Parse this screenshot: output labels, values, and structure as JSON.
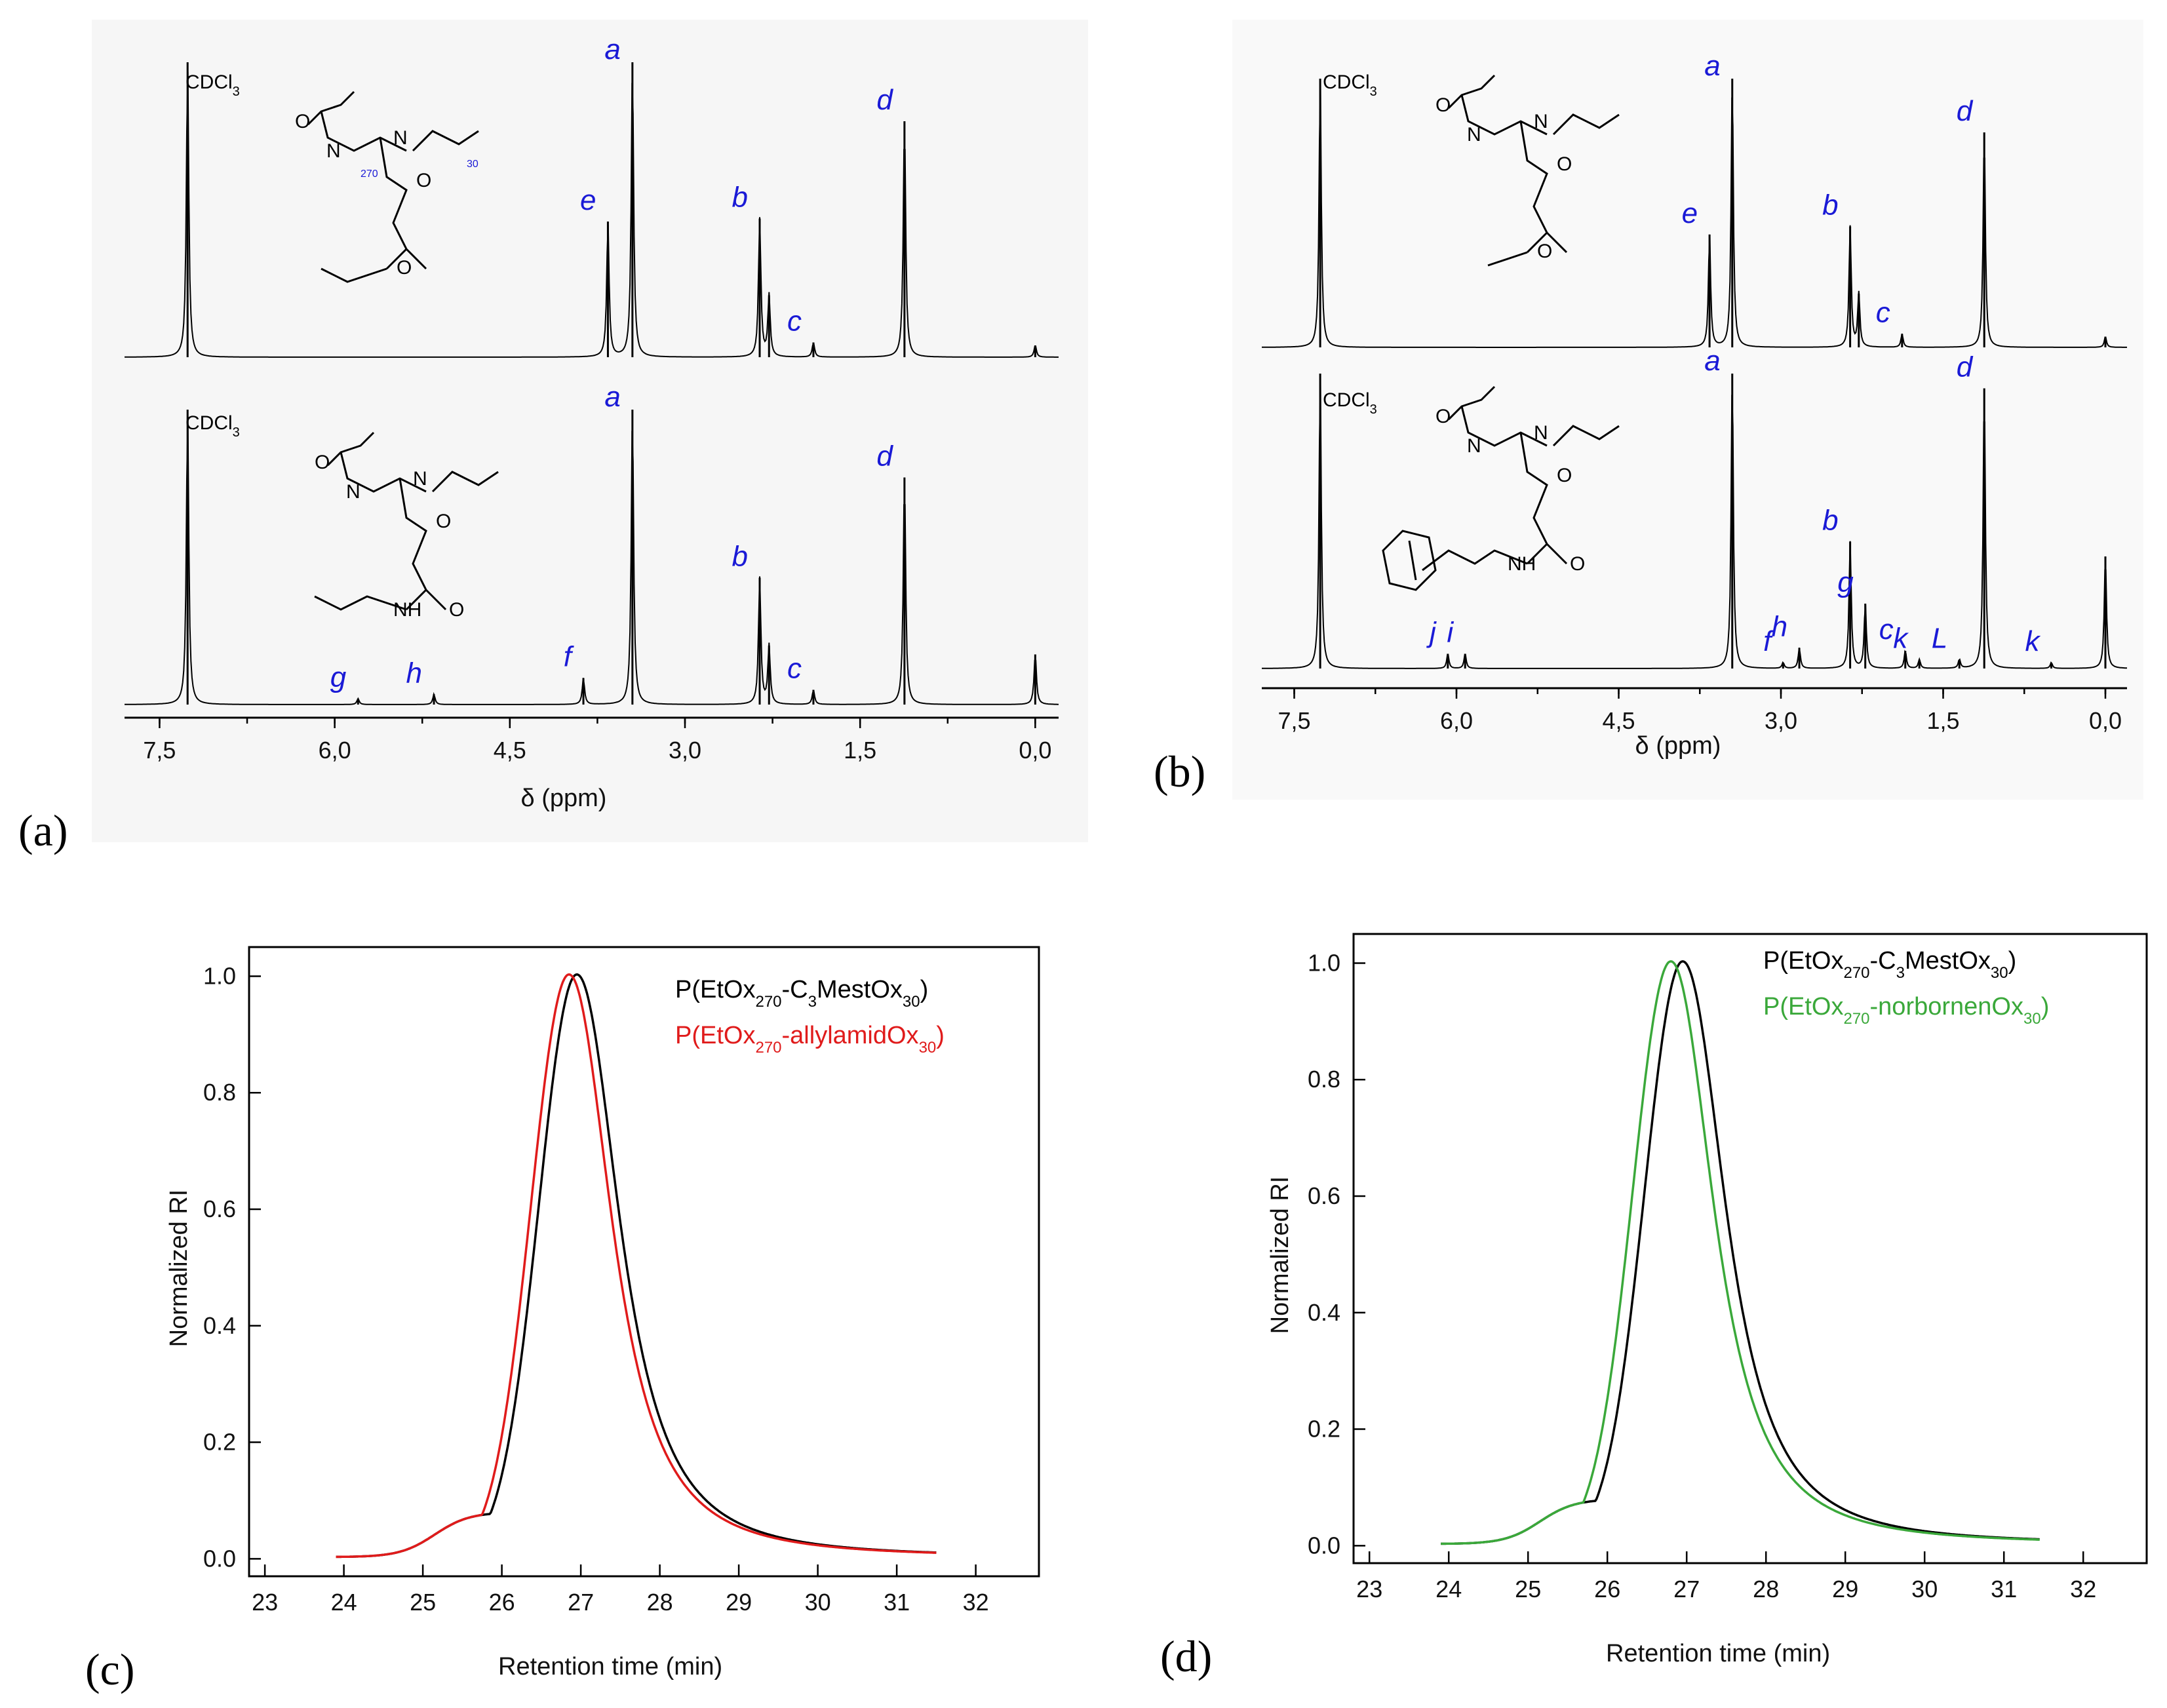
{
  "panels": {
    "a": "(a)",
    "b": "(b)",
    "c": "(c)",
    "d": "(d)"
  },
  "chart_data": [
    {
      "id": "a",
      "type": "line",
      "xlabel": "δ (ppm)",
      "xlim": [
        7.8,
        -0.2
      ],
      "xticks": [
        "7,5",
        "6,0",
        "4,5",
        "3,0",
        "1,5",
        "0,0"
      ],
      "xtick_values": [
        7.5,
        6.0,
        4.5,
        3.0,
        1.5,
        0.0
      ],
      "solvent_label": "CDCl3",
      "spectra": [
        {
          "name": "top",
          "peaks": [
            {
              "ppm": 7.26,
              "h": 1.0,
              "label": ""
            },
            {
              "ppm": 3.66,
              "h": 0.46,
              "label": "e"
            },
            {
              "ppm": 3.45,
              "h": 1.0,
              "label": "a"
            },
            {
              "ppm": 2.36,
              "h": 0.47,
              "label": "b"
            },
            {
              "ppm": 2.28,
              "h": 0.21,
              "label": ""
            },
            {
              "ppm": 1.9,
              "h": 0.05,
              "label": "c"
            },
            {
              "ppm": 1.12,
              "h": 0.8,
              "label": "d"
            },
            {
              "ppm": 0.0,
              "h": 0.04,
              "label": ""
            }
          ]
        },
        {
          "name": "bottom",
          "peaks": [
            {
              "ppm": 7.26,
              "h": 1.0,
              "label": ""
            },
            {
              "ppm": 5.8,
              "h": 0.02,
              "label": "g"
            },
            {
              "ppm": 5.15,
              "h": 0.035,
              "label": "h"
            },
            {
              "ppm": 3.87,
              "h": 0.09,
              "label": "f"
            },
            {
              "ppm": 3.45,
              "h": 1.0,
              "label": "a"
            },
            {
              "ppm": 2.36,
              "h": 0.43,
              "label": "b"
            },
            {
              "ppm": 2.28,
              "h": 0.2,
              "label": ""
            },
            {
              "ppm": 1.9,
              "h": 0.05,
              "label": "c"
            },
            {
              "ppm": 1.12,
              "h": 0.77,
              "label": "d"
            },
            {
              "ppm": 0.0,
              "h": 0.17,
              "label": ""
            }
          ]
        }
      ]
    },
    {
      "id": "b",
      "type": "line",
      "xlabel": "δ (ppm)",
      "xlim": [
        7.8,
        -0.2
      ],
      "xticks": [
        "7,5",
        "6,0",
        "4,5",
        "3,0",
        "1,5",
        "0,0"
      ],
      "xtick_values": [
        7.5,
        6.0,
        4.5,
        3.0,
        1.5,
        0.0
      ],
      "solvent_label": "CDCl3",
      "spectra": [
        {
          "name": "top",
          "peaks": [
            {
              "ppm": 7.26,
              "h": 1.0,
              "label": ""
            },
            {
              "ppm": 3.66,
              "h": 0.42,
              "label": "e"
            },
            {
              "ppm": 3.45,
              "h": 1.0,
              "label": "a"
            },
            {
              "ppm": 2.36,
              "h": 0.45,
              "label": "b"
            },
            {
              "ppm": 2.28,
              "h": 0.2,
              "label": ""
            },
            {
              "ppm": 1.88,
              "h": 0.05,
              "label": "c"
            },
            {
              "ppm": 1.12,
              "h": 0.8,
              "label": "d"
            },
            {
              "ppm": 0.0,
              "h": 0.04,
              "label": ""
            }
          ]
        },
        {
          "name": "bottom",
          "peaks": [
            {
              "ppm": 7.26,
              "h": 1.0,
              "label": ""
            },
            {
              "ppm": 6.08,
              "h": 0.05,
              "label": "j"
            },
            {
              "ppm": 5.92,
              "h": 0.05,
              "label": "i"
            },
            {
              "ppm": 3.45,
              "h": 1.0,
              "label": "a"
            },
            {
              "ppm": 2.98,
              "h": 0.02,
              "label": "f"
            },
            {
              "ppm": 2.83,
              "h": 0.07,
              "label": "h"
            },
            {
              "ppm": 2.36,
              "h": 0.43,
              "label": "b"
            },
            {
              "ppm": 2.22,
              "h": 0.22,
              "label": "g"
            },
            {
              "ppm": 1.85,
              "h": 0.06,
              "label": "c"
            },
            {
              "ppm": 1.72,
              "h": 0.03,
              "label": "k"
            },
            {
              "ppm": 1.35,
              "h": 0.03,
              "label": "L"
            },
            {
              "ppm": 1.12,
              "h": 0.95,
              "label": "d"
            },
            {
              "ppm": 0.5,
              "h": 0.02,
              "label": "k"
            },
            {
              "ppm": 0.0,
              "h": 0.38,
              "label": ""
            }
          ]
        }
      ]
    },
    {
      "id": "c",
      "type": "line",
      "xlabel": "Retention time (min)",
      "ylabel": "Normalized RI",
      "xlim": [
        22.8,
        32.8
      ],
      "ylim": [
        -0.03,
        1.05
      ],
      "xticks": [
        23,
        24,
        25,
        26,
        27,
        28,
        29,
        30,
        31,
        32
      ],
      "yticks": [
        "0.0",
        "0.2",
        "0.4",
        "0.6",
        "0.8",
        "1.0"
      ],
      "ytick_values": [
        0.0,
        0.2,
        0.4,
        0.6,
        0.8,
        1.0
      ],
      "series": [
        {
          "name": "P(EtOx270-C3MestOx30)",
          "color": "#000000",
          "peak": 26.95
        },
        {
          "name": "P(EtOx270-allylamidOx30)",
          "color": "#e01b1b",
          "peak": 26.85
        }
      ]
    },
    {
      "id": "d",
      "type": "line",
      "xlabel": "Retention time (min)",
      "ylabel": "Normalized RI",
      "xlim": [
        22.8,
        32.8
      ],
      "ylim": [
        -0.03,
        1.05
      ],
      "xticks": [
        23,
        24,
        25,
        26,
        27,
        28,
        29,
        30,
        31,
        32
      ],
      "yticks": [
        "0.0",
        "0.2",
        "0.4",
        "0.6",
        "0.8",
        "1.0"
      ],
      "ytick_values": [
        0.0,
        0.2,
        0.4,
        0.6,
        0.8,
        1.0
      ],
      "series": [
        {
          "name": "P(EtOx270-C3MestOx30)",
          "color": "#000000",
          "peak": 26.95
        },
        {
          "name": "P(EtOx270-norbornenOx30)",
          "color": "#3aa83a",
          "peak": 26.8
        }
      ]
    }
  ]
}
